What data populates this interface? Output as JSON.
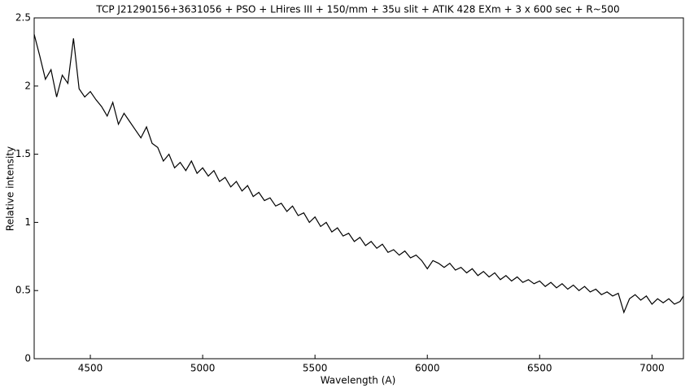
{
  "chart_data": {
    "type": "line",
    "title": "TCP J21290156+3631056 + PSO + LHires III + 150/mm + 35u slit + ATIK 428 EXm + 3 x 600 sec + R~500",
    "x_label": "Wavelength (A)",
    "y_label": "Relative intensity",
    "xlim": [
      4250,
      7140
    ],
    "ylim": [
      0,
      2.5
    ],
    "xticks": [
      4500,
      5000,
      5500,
      6000,
      6500,
      7000
    ],
    "yticks": [
      0,
      0.5,
      1,
      1.5,
      2,
      2.5
    ],
    "grid": false,
    "series": [
      {
        "color": "#000000",
        "x": [
          4250,
          4275,
          4300,
          4325,
          4350,
          4375,
          4400,
          4425,
          4450,
          4475,
          4500,
          4525,
          4550,
          4575,
          4600,
          4625,
          4650,
          4675,
          4700,
          4725,
          4750,
          4775,
          4800,
          4825,
          4850,
          4875,
          4900,
          4925,
          4950,
          4975,
          5000,
          5025,
          5050,
          5075,
          5100,
          5125,
          5150,
          5175,
          5200,
          5225,
          5250,
          5275,
          5300,
          5325,
          5350,
          5375,
          5400,
          5425,
          5450,
          5475,
          5500,
          5525,
          5550,
          5575,
          5600,
          5625,
          5650,
          5675,
          5700,
          5725,
          5750,
          5775,
          5800,
          5825,
          5850,
          5875,
          5900,
          5925,
          5950,
          5975,
          6000,
          6025,
          6050,
          6075,
          6100,
          6125,
          6150,
          6175,
          6200,
          6225,
          6250,
          6275,
          6300,
          6325,
          6350,
          6375,
          6400,
          6425,
          6450,
          6475,
          6500,
          6525,
          6550,
          6575,
          6600,
          6625,
          6650,
          6675,
          6700,
          6725,
          6750,
          6775,
          6800,
          6825,
          6850,
          6875,
          6900,
          6925,
          6950,
          6975,
          7000,
          7025,
          7050,
          7075,
          7100,
          7125,
          7140
        ],
        "values": [
          2.38,
          2.22,
          2.05,
          2.12,
          1.92,
          2.08,
          2.02,
          2.35,
          1.98,
          1.92,
          1.96,
          1.9,
          1.85,
          1.78,
          1.88,
          1.72,
          1.8,
          1.74,
          1.68,
          1.62,
          1.7,
          1.58,
          1.55,
          1.45,
          1.5,
          1.4,
          1.44,
          1.38,
          1.45,
          1.36,
          1.4,
          1.34,
          1.38,
          1.3,
          1.33,
          1.26,
          1.3,
          1.23,
          1.27,
          1.19,
          1.22,
          1.16,
          1.18,
          1.12,
          1.14,
          1.08,
          1.12,
          1.05,
          1.07,
          1.0,
          1.04,
          0.97,
          1.0,
          0.93,
          0.96,
          0.9,
          0.92,
          0.86,
          0.89,
          0.83,
          0.86,
          0.81,
          0.84,
          0.78,
          0.8,
          0.76,
          0.79,
          0.74,
          0.76,
          0.72,
          0.66,
          0.72,
          0.7,
          0.67,
          0.7,
          0.65,
          0.67,
          0.63,
          0.66,
          0.61,
          0.64,
          0.6,
          0.63,
          0.58,
          0.61,
          0.57,
          0.6,
          0.56,
          0.58,
          0.55,
          0.57,
          0.53,
          0.56,
          0.52,
          0.55,
          0.51,
          0.54,
          0.5,
          0.53,
          0.49,
          0.51,
          0.47,
          0.49,
          0.46,
          0.48,
          0.34,
          0.44,
          0.47,
          0.43,
          0.46,
          0.4,
          0.44,
          0.41,
          0.44,
          0.4,
          0.42,
          0.46
        ]
      }
    ]
  }
}
